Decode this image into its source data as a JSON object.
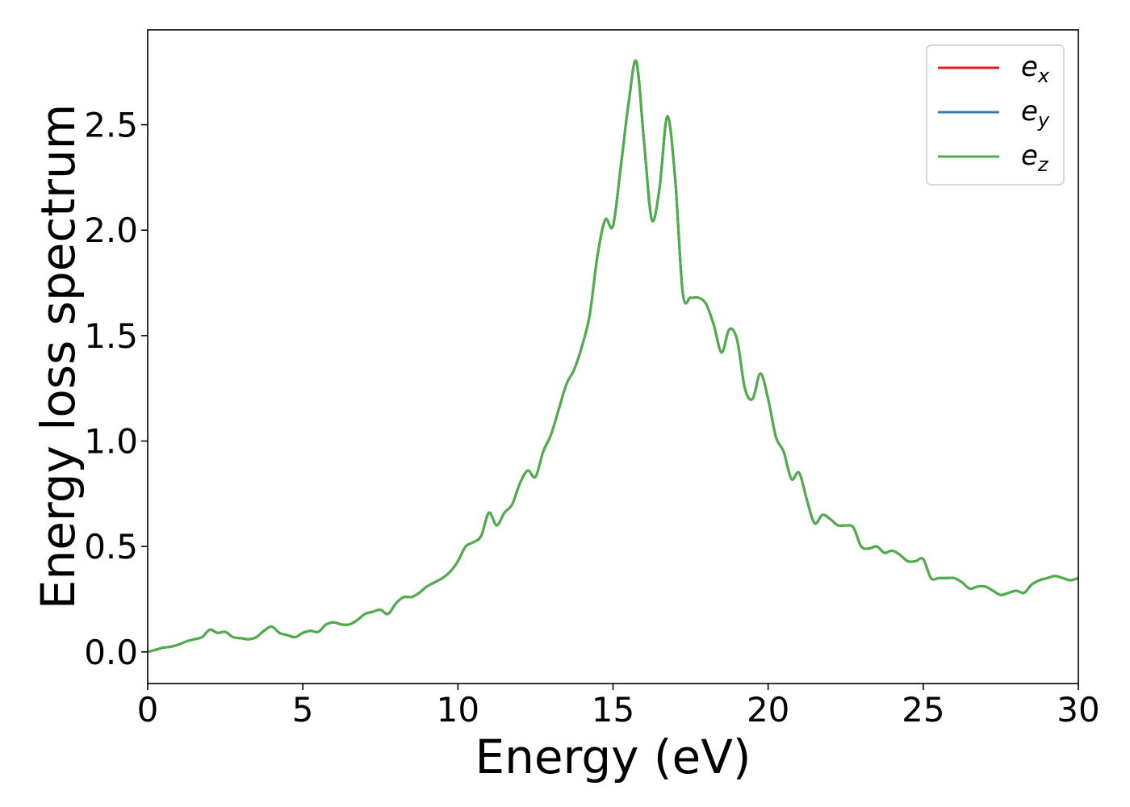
{
  "chart_data": {
    "type": "line",
    "title": "",
    "xlabel": "Energy (eV)",
    "ylabel": "Energy loss spectrum",
    "xlim": [
      0,
      30
    ],
    "ylim": [
      -0.15,
      2.95
    ],
    "xticks": [
      0,
      5,
      10,
      15,
      20,
      25,
      30
    ],
    "yticks": [
      0.0,
      0.5,
      1.0,
      1.5,
      2.0,
      2.5
    ],
    "xtick_labels": [
      "0",
      "5",
      "10",
      "15",
      "20",
      "25",
      "30"
    ],
    "ytick_labels": [
      "0.0",
      "0.5",
      "1.0",
      "1.5",
      "2.0",
      "2.5"
    ],
    "grid": false,
    "legend_position": "top-right",
    "x": [
      0,
      0.25,
      0.5,
      0.75,
      1.0,
      1.25,
      1.5,
      1.75,
      2.0,
      2.25,
      2.5,
      2.75,
      3.0,
      3.25,
      3.5,
      3.75,
      4.0,
      4.25,
      4.5,
      4.75,
      5.0,
      5.25,
      5.5,
      5.75,
      6.0,
      6.25,
      6.5,
      6.75,
      7.0,
      7.25,
      7.5,
      7.75,
      8.0,
      8.25,
      8.5,
      8.75,
      9.0,
      9.25,
      9.5,
      9.75,
      10.0,
      10.25,
      10.5,
      10.75,
      11.0,
      11.25,
      11.5,
      11.75,
      12.0,
      12.25,
      12.5,
      12.75,
      13.0,
      13.25,
      13.5,
      13.75,
      14.0,
      14.25,
      14.5,
      14.75,
      15.0,
      15.25,
      15.5,
      15.75,
      16.0,
      16.25,
      16.5,
      16.75,
      17.0,
      17.25,
      17.5,
      17.75,
      18.0,
      18.25,
      18.5,
      18.75,
      19.0,
      19.25,
      19.5,
      19.75,
      20.0,
      20.25,
      20.5,
      20.75,
      21.0,
      21.25,
      21.5,
      21.75,
      22.0,
      22.25,
      22.5,
      22.75,
      23.0,
      23.25,
      23.5,
      23.75,
      24.0,
      24.25,
      24.5,
      24.75,
      25.0,
      25.25,
      25.5,
      25.75,
      26.0,
      26.25,
      26.5,
      26.75,
      27.0,
      27.25,
      27.5,
      27.75,
      28.0,
      28.25,
      28.5,
      28.75,
      29.0,
      29.25,
      29.5,
      29.75,
      30.0
    ],
    "series": [
      {
        "name": "e_x",
        "label_main": "e",
        "label_sub": "x",
        "color": "#e41a1c",
        "values": [
          0.0,
          0.01,
          0.02,
          0.025,
          0.035,
          0.05,
          0.06,
          0.07,
          0.105,
          0.09,
          0.095,
          0.07,
          0.065,
          0.06,
          0.07,
          0.1,
          0.12,
          0.09,
          0.08,
          0.07,
          0.09,
          0.1,
          0.095,
          0.13,
          0.14,
          0.13,
          0.13,
          0.15,
          0.18,
          0.19,
          0.2,
          0.18,
          0.23,
          0.26,
          0.26,
          0.28,
          0.31,
          0.33,
          0.35,
          0.38,
          0.43,
          0.5,
          0.52,
          0.55,
          0.66,
          0.6,
          0.66,
          0.7,
          0.8,
          0.86,
          0.83,
          0.95,
          1.03,
          1.15,
          1.27,
          1.34,
          1.45,
          1.6,
          1.88,
          2.05,
          2.02,
          2.3,
          2.6,
          2.8,
          2.42,
          2.05,
          2.2,
          2.54,
          2.25,
          1.7,
          1.68,
          1.68,
          1.65,
          1.55,
          1.42,
          1.53,
          1.48,
          1.25,
          1.2,
          1.32,
          1.2,
          1.02,
          0.95,
          0.82,
          0.85,
          0.72,
          0.61,
          0.65,
          0.63,
          0.6,
          0.6,
          0.59,
          0.5,
          0.49,
          0.5,
          0.47,
          0.48,
          0.46,
          0.43,
          0.43,
          0.44,
          0.35,
          0.35,
          0.35,
          0.35,
          0.33,
          0.3,
          0.31,
          0.31,
          0.29,
          0.27,
          0.28,
          0.29,
          0.28,
          0.32,
          0.34,
          0.35,
          0.36,
          0.35,
          0.34,
          0.35
        ]
      },
      {
        "name": "e_y",
        "label_main": "e",
        "label_sub": "y",
        "color": "#377eb8",
        "values": [
          0.0,
          0.01,
          0.02,
          0.025,
          0.035,
          0.05,
          0.06,
          0.07,
          0.105,
          0.09,
          0.095,
          0.07,
          0.065,
          0.06,
          0.07,
          0.1,
          0.12,
          0.09,
          0.08,
          0.07,
          0.09,
          0.1,
          0.095,
          0.13,
          0.14,
          0.13,
          0.13,
          0.15,
          0.18,
          0.19,
          0.2,
          0.18,
          0.23,
          0.26,
          0.26,
          0.28,
          0.31,
          0.33,
          0.35,
          0.38,
          0.43,
          0.5,
          0.52,
          0.55,
          0.66,
          0.6,
          0.66,
          0.7,
          0.8,
          0.86,
          0.83,
          0.95,
          1.03,
          1.15,
          1.27,
          1.34,
          1.45,
          1.6,
          1.88,
          2.05,
          2.02,
          2.3,
          2.6,
          2.8,
          2.42,
          2.05,
          2.2,
          2.54,
          2.25,
          1.7,
          1.68,
          1.68,
          1.65,
          1.55,
          1.42,
          1.53,
          1.48,
          1.25,
          1.2,
          1.32,
          1.2,
          1.02,
          0.95,
          0.82,
          0.85,
          0.72,
          0.61,
          0.65,
          0.63,
          0.6,
          0.6,
          0.59,
          0.5,
          0.49,
          0.5,
          0.47,
          0.48,
          0.46,
          0.43,
          0.43,
          0.44,
          0.35,
          0.35,
          0.35,
          0.35,
          0.33,
          0.3,
          0.31,
          0.31,
          0.29,
          0.27,
          0.28,
          0.29,
          0.28,
          0.32,
          0.34,
          0.35,
          0.36,
          0.35,
          0.34,
          0.35
        ]
      },
      {
        "name": "e_z",
        "label_main": "e",
        "label_sub": "z",
        "color": "#4daf4a",
        "values": [
          0.0,
          0.01,
          0.02,
          0.025,
          0.035,
          0.05,
          0.06,
          0.07,
          0.105,
          0.09,
          0.095,
          0.07,
          0.065,
          0.06,
          0.07,
          0.1,
          0.12,
          0.09,
          0.08,
          0.07,
          0.09,
          0.1,
          0.095,
          0.13,
          0.14,
          0.13,
          0.13,
          0.15,
          0.18,
          0.19,
          0.2,
          0.18,
          0.23,
          0.26,
          0.26,
          0.28,
          0.31,
          0.33,
          0.35,
          0.38,
          0.43,
          0.5,
          0.52,
          0.55,
          0.66,
          0.6,
          0.66,
          0.7,
          0.8,
          0.86,
          0.83,
          0.95,
          1.03,
          1.15,
          1.27,
          1.34,
          1.45,
          1.6,
          1.88,
          2.05,
          2.02,
          2.3,
          2.6,
          2.8,
          2.42,
          2.05,
          2.2,
          2.54,
          2.25,
          1.7,
          1.68,
          1.68,
          1.65,
          1.55,
          1.42,
          1.53,
          1.48,
          1.25,
          1.2,
          1.32,
          1.2,
          1.02,
          0.95,
          0.82,
          0.85,
          0.72,
          0.61,
          0.65,
          0.63,
          0.6,
          0.6,
          0.59,
          0.5,
          0.49,
          0.5,
          0.47,
          0.48,
          0.46,
          0.43,
          0.43,
          0.44,
          0.35,
          0.35,
          0.35,
          0.35,
          0.33,
          0.3,
          0.31,
          0.31,
          0.29,
          0.27,
          0.28,
          0.29,
          0.28,
          0.32,
          0.34,
          0.35,
          0.36,
          0.35,
          0.34,
          0.35
        ]
      }
    ]
  }
}
